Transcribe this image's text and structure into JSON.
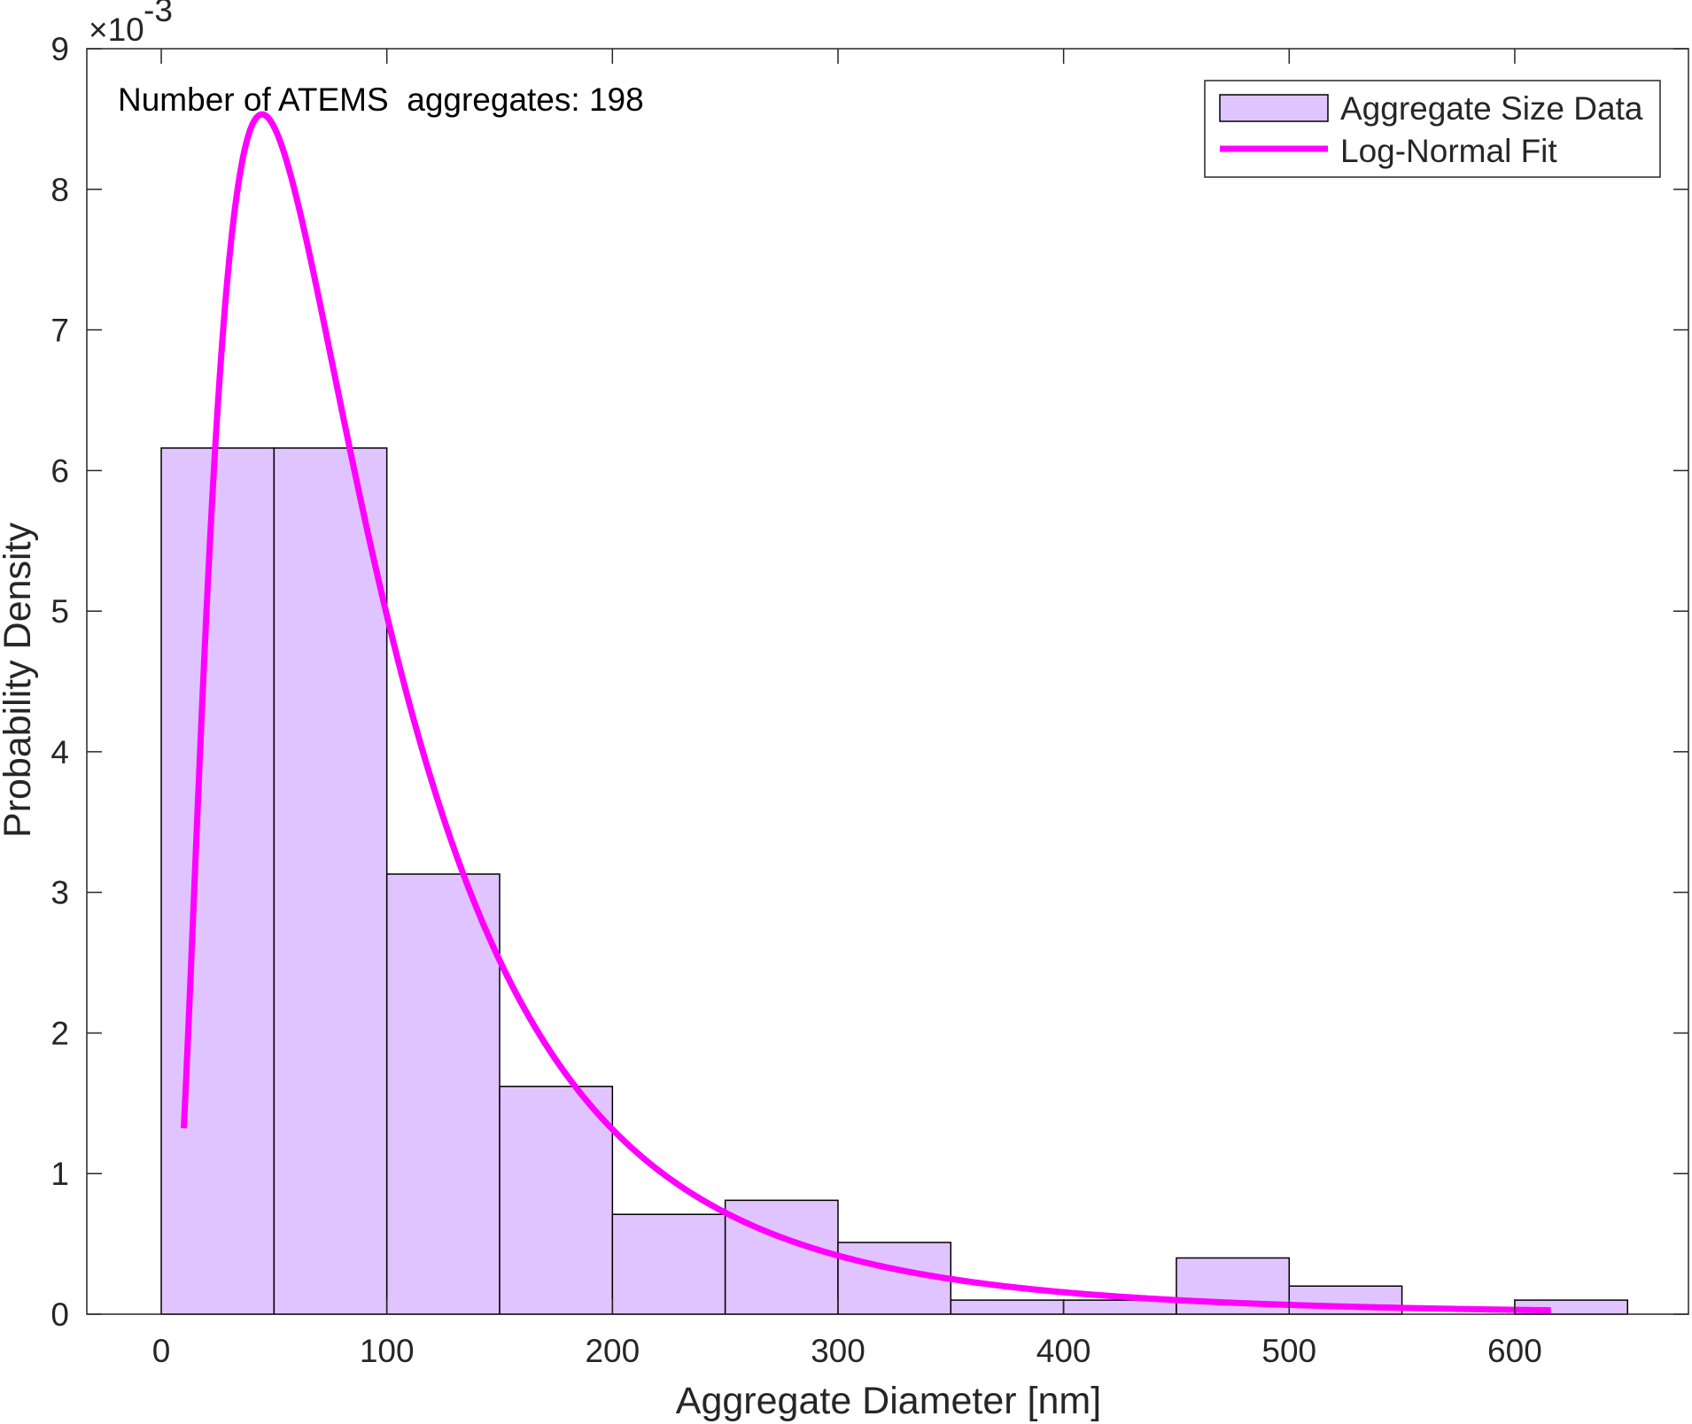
{
  "chart_data": {
    "type": "bar",
    "xlabel": "Aggregate Diameter [nm]",
    "ylabel": "Probability Density",
    "xlim": [
      -33,
      677
    ],
    "ylim": [
      0,
      9
    ],
    "x_ticks": [
      0,
      100,
      200,
      300,
      400,
      500,
      600
    ],
    "y_ticks": [
      0,
      1,
      2,
      3,
      4,
      5,
      6,
      7,
      8,
      9
    ],
    "y_exponent": {
      "base": "×10",
      "power": "-3"
    },
    "grid": false,
    "legend_position": "top-right",
    "annotation": "Number of ATEMS  aggregates: 198",
    "histogram": {
      "name": "Aggregate Size Data",
      "color": "#e0c4ff",
      "edge_color": "#000000",
      "bin_edges": [
        0,
        50,
        100,
        150,
        200,
        250,
        300,
        350,
        400,
        450,
        500,
        550,
        600,
        650
      ],
      "values": [
        6.16,
        6.16,
        3.13,
        1.62,
        0.71,
        0.81,
        0.51,
        0.1,
        0.1,
        0.4,
        0.2,
        0.0,
        0.1
      ]
    },
    "fit": {
      "name": "Log-Normal Fit",
      "color": "#ff00ff",
      "distribution": "lognormal",
      "x_range": [
        10,
        616
      ],
      "mu": 4.4,
      "sigma": 0.775
    }
  }
}
